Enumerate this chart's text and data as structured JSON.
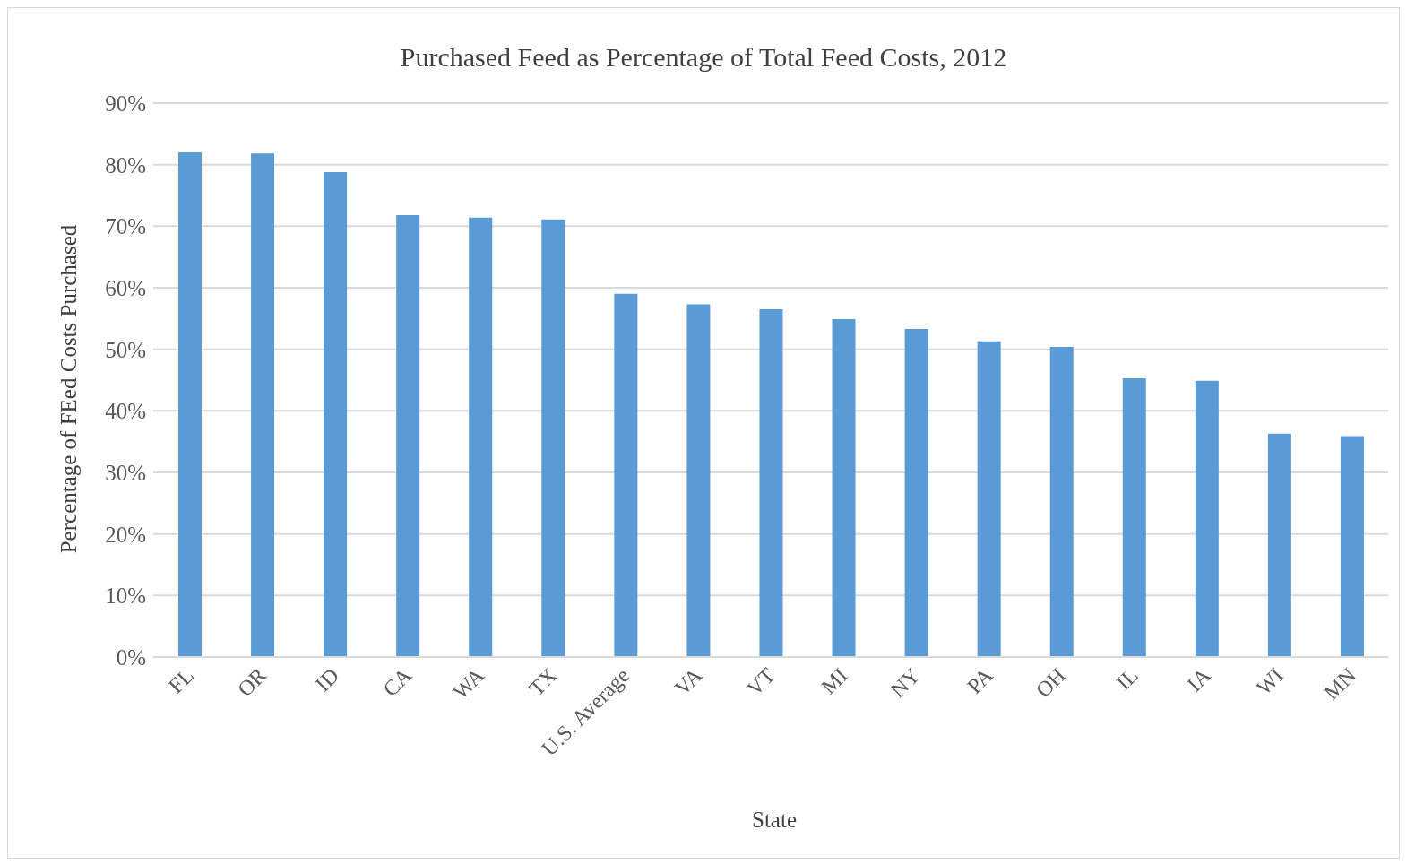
{
  "chart_data": {
    "type": "bar",
    "title": "Purchased Feed as Percentage of Total Feed Costs, 2012",
    "xlabel": "State",
    "ylabel": "Percentage of FEed Costs Purchased",
    "categories": [
      "FL",
      "OR",
      "ID",
      "CA",
      "WA",
      "TX",
      "U.S. Average",
      "VA",
      "VT",
      "MI",
      "NY",
      "PA",
      "OH",
      "IL",
      "IA",
      "WI",
      "MN"
    ],
    "values": [
      82.0,
      81.8,
      78.8,
      71.8,
      71.4,
      71.1,
      59.0,
      57.3,
      56.5,
      54.9,
      53.3,
      51.3,
      50.4,
      45.3,
      44.9,
      36.3,
      35.9
    ],
    "color": "#5b9bd5",
    "ylim": [
      0,
      90
    ],
    "yticks": [
      {
        "value": 0,
        "label": "0%"
      },
      {
        "value": 10,
        "label": "10%"
      },
      {
        "value": 20,
        "label": "20%"
      },
      {
        "value": 30,
        "label": "30%"
      },
      {
        "value": 40,
        "label": "40%"
      },
      {
        "value": 50,
        "label": "50%"
      },
      {
        "value": 60,
        "label": "60%"
      },
      {
        "value": 70,
        "label": "70%"
      },
      {
        "value": 80,
        "label": "80%"
      },
      {
        "value": 90,
        "label": "90%"
      }
    ],
    "grid": "y",
    "legend": false
  }
}
